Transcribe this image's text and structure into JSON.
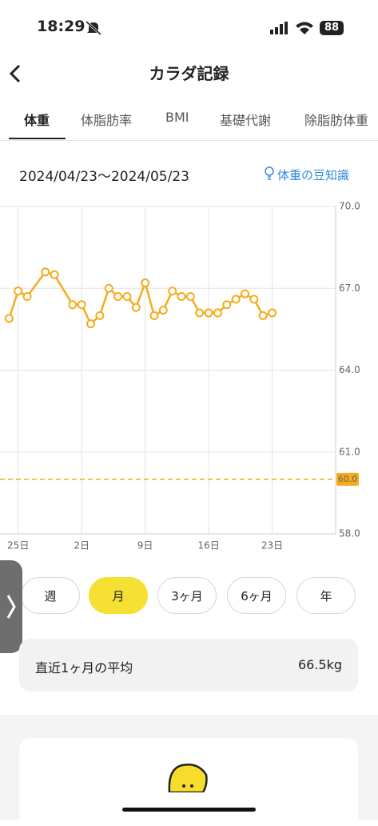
{
  "status_bar": {
    "time": "18:29",
    "battery": "88"
  },
  "header": {
    "title": "カラダ記録"
  },
  "tabs": [
    "体重",
    "体脂肪率",
    "BMI",
    "基礎代謝",
    "除脂肪体重"
  ],
  "date_range": "2024/04/23〜2024/05/23",
  "tips_link": "体重の豆知識",
  "chart_data": {
    "type": "line",
    "x": [
      "2024/04/24",
      "2024/04/25",
      "2024/04/26",
      "2024/04/28",
      "2024/04/29",
      "2024/05/01",
      "2024/05/02",
      "2024/05/03",
      "2024/05/04",
      "2024/05/05",
      "2024/05/06",
      "2024/05/07",
      "2024/05/08",
      "2024/05/09",
      "2024/05/10",
      "2024/05/11",
      "2024/05/12",
      "2024/05/13",
      "2024/05/14",
      "2024/05/15",
      "2024/05/16",
      "2024/05/17",
      "2024/05/18",
      "2024/05/19",
      "2024/05/20",
      "2024/05/21",
      "2024/05/22",
      "2024/05/23"
    ],
    "series": [
      {
        "name": "体重",
        "color": "#f5ac1c",
        "values": [
          65.9,
          66.9,
          66.7,
          67.6,
          67.5,
          66.4,
          66.4,
          65.7,
          66.0,
          67.0,
          66.7,
          66.7,
          66.3,
          67.2,
          66.0,
          66.2,
          66.9,
          66.7,
          66.7,
          66.1,
          66.1,
          66.1,
          66.4,
          66.6,
          66.8,
          66.6,
          66.0,
          66.1
        ]
      }
    ],
    "xlim": [
      "2024/04/23",
      "2024/05/30"
    ],
    "xticks": [
      {
        "value": "2024/04/25",
        "label": "25日"
      },
      {
        "value": "2024/05/02",
        "label": "2日"
      },
      {
        "value": "2024/05/09",
        "label": "9日"
      },
      {
        "value": "2024/05/16",
        "label": "16日"
      },
      {
        "value": "2024/05/23",
        "label": "23日"
      }
    ],
    "ylim": [
      58,
      70
    ],
    "yticks": [
      {
        "value": 58,
        "label": "58.0"
      },
      {
        "value": 61,
        "label": "61.0"
      },
      {
        "value": 64,
        "label": "64.0"
      },
      {
        "value": 67,
        "label": "67.0"
      },
      {
        "value": 70,
        "label": "70.0"
      }
    ],
    "grid": true,
    "target_line": {
      "value": 60,
      "label": "60.0",
      "color": "#f5ac1c"
    }
  },
  "periods": [
    "週",
    "月",
    "3ヶ月",
    "6ヶ月",
    "年"
  ],
  "active_period": 1,
  "average": {
    "label": "直近1ヶ月の平均",
    "value": "66.5kg"
  }
}
